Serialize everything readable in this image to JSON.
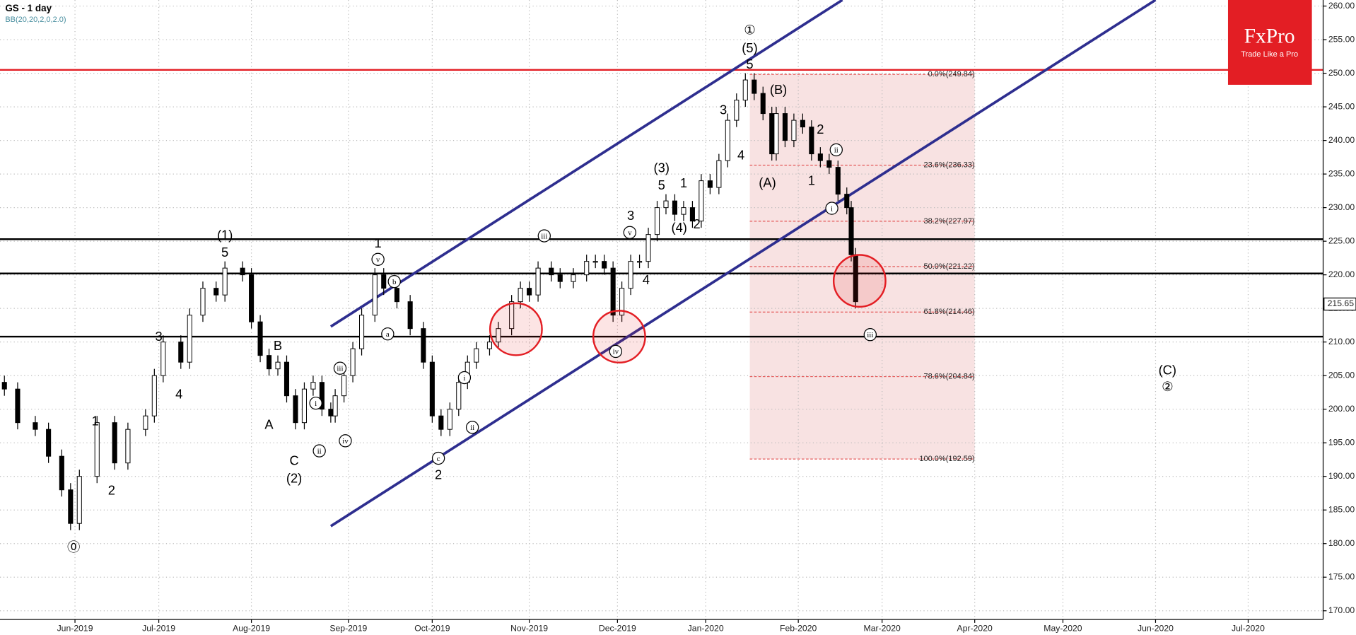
{
  "chart_data": {
    "type": "candlestick",
    "title": "GS  - 1 day",
    "subtitle": "BB(20,20,2,0,2.0)",
    "brand": "FxPro",
    "brand_tagline": "Trade Like a Pro",
    "brand_color": "#e31e24",
    "xlim": [
      -1,
      299
    ],
    "ylim": [
      170,
      260
    ],
    "xticks": [
      {
        "value": 16,
        "label": "Jun-2019"
      },
      {
        "value": 35,
        "label": "Jul-2019"
      },
      {
        "value": 56,
        "label": "Aug-2019"
      },
      {
        "value": 78,
        "label": "Sep-2019"
      },
      {
        "value": 97,
        "label": "Oct-2019"
      },
      {
        "value": 119,
        "label": "Nov-2019"
      },
      {
        "value": 139,
        "label": "Dec-2019"
      },
      {
        "value": 159,
        "label": "Jan-2020"
      },
      {
        "value": 180,
        "label": "Feb-2020"
      },
      {
        "value": 199,
        "label": "Mar-2020"
      },
      {
        "value": 220,
        "label": "Apr-2020"
      },
      {
        "value": 240,
        "label": "May-2020"
      },
      {
        "value": 261,
        "label": "Jun-2020"
      },
      {
        "value": 282,
        "label": "Jul-2020"
      }
    ],
    "yticks": [
      {
        "value": 170,
        "label": "170.00"
      },
      {
        "value": 175,
        "label": "175.00"
      },
      {
        "value": 180,
        "label": "180.00"
      },
      {
        "value": 185,
        "label": "185.00"
      },
      {
        "value": 190,
        "label": "190.00"
      },
      {
        "value": 195,
        "label": "195.00"
      },
      {
        "value": 200,
        "label": "200.00"
      },
      {
        "value": 205,
        "label": "205.00"
      },
      {
        "value": 210,
        "label": "210.00"
      },
      {
        "value": 215,
        "label": "215.00"
      },
      {
        "value": 220,
        "label": "220.00"
      },
      {
        "value": 225,
        "label": "225.00"
      },
      {
        "value": 230,
        "label": "230.00"
      },
      {
        "value": 235,
        "label": "235.00"
      },
      {
        "value": 240,
        "label": "240.00"
      },
      {
        "value": 245,
        "label": "245.00"
      },
      {
        "value": 250,
        "label": "250.00"
      },
      {
        "value": 255,
        "label": "255.00"
      },
      {
        "value": 260,
        "label": "260.00"
      }
    ],
    "grid": true,
    "x": [
      0,
      3,
      7,
      10,
      13,
      15,
      17,
      21,
      25,
      28,
      32,
      34,
      36,
      40,
      42,
      45,
      48,
      50,
      54,
      56,
      58,
      60,
      62,
      64,
      66,
      68,
      70,
      72,
      74,
      75,
      77,
      79,
      81,
      84,
      86,
      89,
      92,
      95,
      97,
      99,
      101,
      103,
      105,
      107,
      110,
      112,
      115,
      117,
      119,
      121,
      124,
      126,
      129,
      132,
      134,
      136,
      138,
      140,
      142,
      144,
      146,
      148,
      150,
      152,
      154,
      156,
      158,
      160,
      162,
      164,
      166,
      168,
      170,
      172,
      174,
      175,
      177,
      179,
      181,
      183,
      185,
      187,
      189,
      191,
      192,
      193
    ],
    "open": [
      204,
      203,
      198,
      197,
      193,
      188,
      183,
      190,
      198,
      192,
      197,
      199,
      205,
      210,
      207,
      214,
      218,
      217,
      221,
      220,
      213,
      208,
      206,
      207,
      202,
      198,
      203,
      204,
      200,
      199,
      202,
      205,
      209,
      214,
      220,
      218,
      216,
      212,
      207,
      199,
      197,
      200,
      204,
      207,
      209,
      210,
      212,
      216,
      218,
      217,
      221,
      220,
      219,
      220,
      222,
      222,
      221,
      214,
      218,
      222,
      222,
      226,
      230,
      231,
      229,
      230,
      228,
      234,
      233,
      237,
      243,
      246,
      249,
      247,
      244,
      238,
      244,
      240,
      243,
      242,
      238,
      237,
      236,
      232,
      230,
      223
    ],
    "high": [
      205,
      204,
      199,
      198,
      194,
      189,
      191,
      199,
      199,
      198,
      200,
      206,
      211,
      211,
      215,
      219,
      219,
      222,
      222,
      221,
      214,
      209,
      208,
      208,
      203,
      204,
      205,
      205,
      201,
      203,
      206,
      210,
      215,
      221,
      221,
      219,
      217,
      213,
      208,
      200,
      201,
      205,
      208,
      210,
      211,
      213,
      217,
      219,
      219,
      222,
      222,
      221,
      221,
      223,
      223,
      223,
      222,
      219,
      223,
      223,
      227,
      231,
      232,
      232,
      231,
      231,
      235,
      235,
      238,
      244,
      247,
      250,
      250,
      248,
      245,
      245,
      245,
      244,
      244,
      243,
      239,
      238,
      237,
      233,
      231,
      224
    ],
    "low": [
      202,
      197,
      196,
      192,
      187,
      182,
      182,
      189,
      191,
      191,
      196,
      198,
      204,
      206,
      206,
      213,
      216,
      216,
      219,
      212,
      207,
      205,
      205,
      201,
      197,
      197,
      202,
      199,
      198,
      198,
      201,
      204,
      208,
      213,
      217,
      215,
      211,
      206,
      198,
      196,
      196,
      199,
      203,
      206,
      208,
      209,
      211,
      215,
      216,
      216,
      219,
      218,
      218,
      219,
      221,
      220,
      213,
      213,
      217,
      221,
      221,
      225,
      229,
      228,
      228,
      227,
      227,
      232,
      232,
      236,
      242,
      245,
      246,
      243,
      237,
      237,
      239,
      239,
      241,
      237,
      236,
      235,
      231,
      229,
      222,
      215
    ],
    "close": [
      203,
      198,
      197,
      193,
      188,
      183,
      190,
      198,
      192,
      197,
      199,
      205,
      210,
      207,
      214,
      218,
      217,
      221,
      220,
      213,
      208,
      206,
      207,
      202,
      198,
      203,
      204,
      200,
      199,
      202,
      205,
      209,
      214,
      220,
      218,
      216,
      212,
      207,
      199,
      197,
      200,
      204,
      207,
      209,
      210,
      212,
      216,
      218,
      217,
      221,
      220,
      219,
      220,
      222,
      222,
      221,
      214,
      218,
      222,
      222,
      226,
      230,
      231,
      229,
      230,
      228,
      234,
      233,
      237,
      243,
      246,
      249,
      247,
      244,
      238,
      244,
      240,
      243,
      242,
      238,
      237,
      236,
      232,
      230,
      223,
      216
    ],
    "levels": [
      {
        "value": 250.5,
        "color": "#e31e24"
      },
      {
        "value": 225.3,
        "color": "#000000"
      },
      {
        "value": 220.2,
        "color": "#000000"
      },
      {
        "value": 210.8,
        "color": "#000000"
      }
    ],
    "channels": [
      {
        "x": [
          74,
          190
        ],
        "y": [
          212.3,
          260.9
        ],
        "color": "#2e2e8f"
      },
      {
        "x": [
          74,
          261
        ],
        "y": [
          182.6,
          260.9
        ],
        "color": "#2e2e8f"
      }
    ],
    "fib_zone": {
      "x": [
        169,
        220
      ],
      "color": "#f5d5d6"
    },
    "fib": [
      {
        "value": 249.84,
        "label": "0.0%(249.84)"
      },
      {
        "value": 236.33,
        "label": "23.6%(236.33)"
      },
      {
        "value": 227.97,
        "label": "38.2%(227.97)"
      },
      {
        "value": 221.22,
        "label": "50.0%(221.22)"
      },
      {
        "value": 214.46,
        "label": "61.8%(214.46)"
      },
      {
        "value": 204.84,
        "label": "78.6%(204.84)"
      },
      {
        "value": 192.59,
        "label": "100.0%(192.59)"
      }
    ],
    "last_price": {
      "value": 215.65,
      "label": "215.65"
    },
    "highlights": [
      {
        "x": 116,
        "y": 211.9
      },
      {
        "x": 139.4,
        "y": 210.8
      },
      {
        "x": 193.9,
        "y": 219.1
      }
    ],
    "annotations": [
      {
        "text": "①",
        "x": 169,
        "y": 256.3
      },
      {
        "text": "(5)",
        "x": 169,
        "y": 253.6
      },
      {
        "text": "5",
        "x": 169,
        "y": 251.2
      },
      {
        "text": "(B)",
        "x": 175.5,
        "y": 247.4
      },
      {
        "text": "3",
        "x": 163,
        "y": 244.4
      },
      {
        "text": "4",
        "x": 167,
        "y": 237.7
      },
      {
        "text": "(A)",
        "x": 173,
        "y": 233.6
      },
      {
        "text": "2",
        "x": 185,
        "y": 241.5
      },
      {
        "text": "1",
        "x": 183,
        "y": 233.9
      },
      {
        "text": "(3)",
        "x": 149,
        "y": 235.8
      },
      {
        "text": "5",
        "x": 149,
        "y": 233.2
      },
      {
        "text": "1",
        "x": 154,
        "y": 233.5
      },
      {
        "text": "(4)",
        "x": 153,
        "y": 226.9
      },
      {
        "text": "2",
        "x": 157,
        "y": 227.4
      },
      {
        "text": "3",
        "x": 142,
        "y": 228.7
      },
      {
        "text": "4",
        "x": 145.5,
        "y": 219.1
      },
      {
        "text": "(1)",
        "x": 50,
        "y": 225.8
      },
      {
        "text": "5",
        "x": 50,
        "y": 223.2
      },
      {
        "text": "3",
        "x": 35,
        "y": 210.7
      },
      {
        "text": "4",
        "x": 39.6,
        "y": 202.1
      },
      {
        "text": "1",
        "x": 20.6,
        "y": 198.1
      },
      {
        "text": "2",
        "x": 24.3,
        "y": 187.8
      },
      {
        "text": "⓪",
        "x": 15.7,
        "y": 179.3
      },
      {
        "text": "B",
        "x": 62,
        "y": 209.3
      },
      {
        "text": "A",
        "x": 60,
        "y": 197.6
      },
      {
        "text": "C",
        "x": 65.7,
        "y": 192.2
      },
      {
        "text": "(2)",
        "x": 65.7,
        "y": 189.6
      },
      {
        "text": "1",
        "x": 84.7,
        "y": 224.6
      },
      {
        "text": "2",
        "x": 98.4,
        "y": 190.1
      },
      {
        "text": "(C)",
        "x": 263.7,
        "y": 205.7
      },
      {
        "text": "②",
        "x": 263.7,
        "y": 203.2
      }
    ],
    "minor_waves": [
      {
        "text": "v",
        "x": 84.7,
        "y": 222.3
      },
      {
        "text": "b",
        "x": 88.4,
        "y": 219.0
      },
      {
        "text": "a",
        "x": 86.9,
        "y": 211.2
      },
      {
        "text": "iii",
        "x": 76.1,
        "y": 206.1
      },
      {
        "text": "i",
        "x": 70.6,
        "y": 200.9
      },
      {
        "text": "ii",
        "x": 71.4,
        "y": 193.8
      },
      {
        "text": "iv",
        "x": 77.3,
        "y": 195.3
      },
      {
        "text": "iii",
        "x": 122.4,
        "y": 225.8
      },
      {
        "text": "v",
        "x": 141.8,
        "y": 226.3
      },
      {
        "text": "i",
        "x": 104.3,
        "y": 204.7
      },
      {
        "text": "ii",
        "x": 106.1,
        "y": 197.3
      },
      {
        "text": "c",
        "x": 98.4,
        "y": 192.7
      },
      {
        "text": "iv",
        "x": 138.6,
        "y": 208.6
      },
      {
        "text": "ii",
        "x": 188.6,
        "y": 238.6
      },
      {
        "text": "i",
        "x": 187.6,
        "y": 229.9
      },
      {
        "text": "iii",
        "x": 196.3,
        "y": 211.1
      }
    ]
  }
}
